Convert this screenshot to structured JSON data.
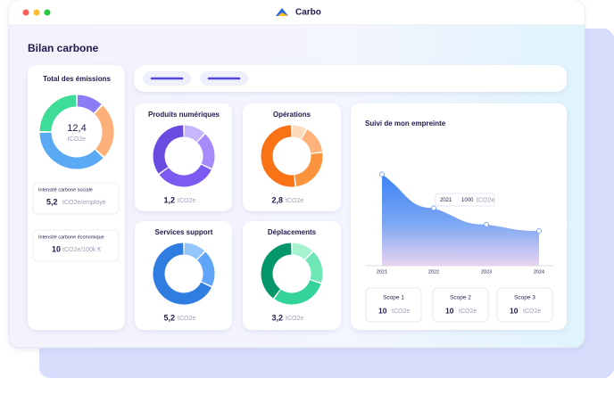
{
  "app": {
    "title": "Carbo"
  },
  "page": {
    "title": "Bilan carbone"
  },
  "total": {
    "title": "Total des émissions",
    "value": "12,4",
    "unit": "tCO2e",
    "chart_data": {
      "type": "pie",
      "values": [
        12,
        25,
        38,
        25
      ],
      "colors": [
        "#8b7cf6",
        "#fdb07a",
        "#5aa9f5",
        "#3ddc97"
      ]
    }
  },
  "intensities": [
    {
      "label": "Intensité carbone sociale",
      "value": "5,2",
      "unit": "tCO2e/employé"
    },
    {
      "label": "Intensité carbone économique",
      "value": "10",
      "unit": "tCO2e/100k €"
    }
  ],
  "cards": [
    {
      "title": "Produits numériques",
      "value": "1,2",
      "unit": "tCO2e",
      "chart_data": {
        "type": "pie",
        "values": [
          12,
          20,
          33,
          35
        ],
        "colors": [
          "#c4b5fd",
          "#a78bfa",
          "#7c5cf0",
          "#6a4be0"
        ]
      }
    },
    {
      "title": "Opérations",
      "value": "2,8",
      "unit": "tCO2e",
      "chart_data": {
        "type": "pie",
        "values": [
          8,
          15,
          25,
          52
        ],
        "colors": [
          "#fcd9b8",
          "#fdb27a",
          "#fb923c",
          "#f97316"
        ]
      }
    },
    {
      "title": "Services support",
      "value": "5,2",
      "unit": "tCO2e",
      "chart_data": {
        "type": "pie",
        "values": [
          12,
          20,
          68
        ],
        "colors": [
          "#93c5fd",
          "#60a5fa",
          "#2f7de1"
        ]
      }
    },
    {
      "title": "Déplacements",
      "value": "3,2",
      "unit": "tCO2e",
      "chart_data": {
        "type": "pie",
        "values": [
          12,
          18,
          30,
          40
        ],
        "colors": [
          "#a7f3d0",
          "#6ee7b7",
          "#34d399",
          "#059669"
        ]
      }
    }
  ],
  "trend": {
    "title": "Suivi de mon empreinte",
    "tooltip": {
      "label": "2021",
      "value": "1000",
      "unit": "tCO2e"
    },
    "chart_data": {
      "type": "area",
      "categories": [
        "2021",
        "2022",
        "2023",
        "2024"
      ],
      "values": [
        1000,
        630,
        450,
        380
      ],
      "ylim": [
        0,
        1150
      ],
      "color": "#3b82f6"
    }
  },
  "scopes": [
    {
      "label": "Scope 1",
      "value": "10",
      "unit": "tCO2e"
    },
    {
      "label": "Scope 2",
      "value": "10",
      "unit": "tCO2e"
    },
    {
      "label": "Scope 3",
      "value": "10",
      "unit": "tCO2e"
    }
  ]
}
